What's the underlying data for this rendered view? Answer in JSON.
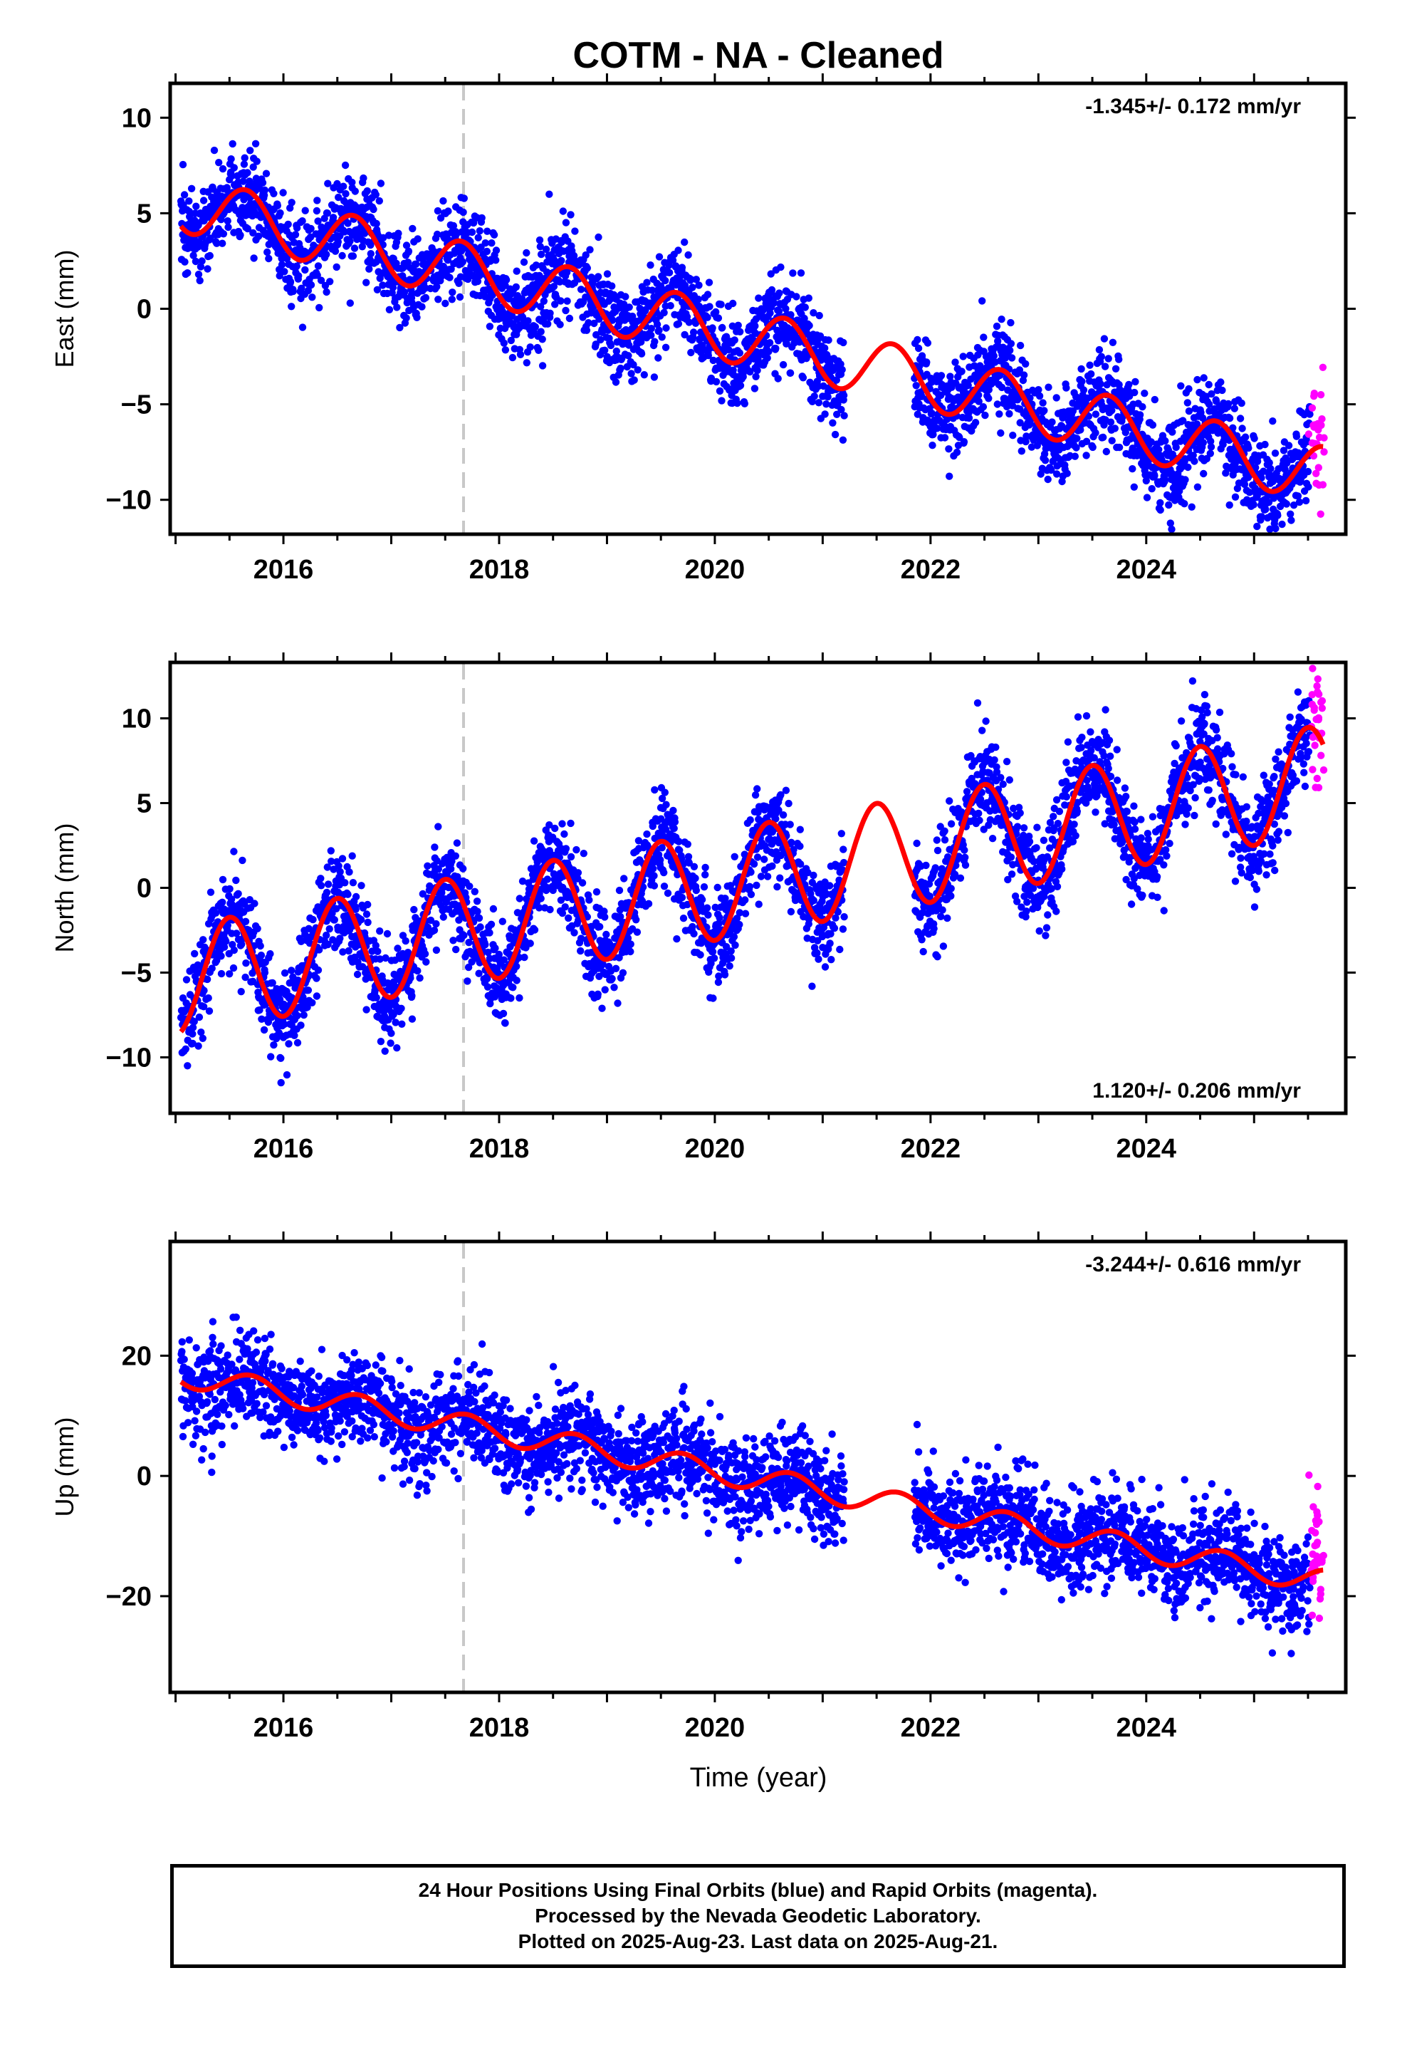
{
  "title": "COTM  - NA - Cleaned",
  "xlabel": "Time (year)",
  "footer": {
    "line1": "24 Hour Positions Using Final Orbits (blue) and Rapid Orbits (magenta).",
    "line2": "Processed by the Nevada Geodetic Laboratory.",
    "line3": "Plotted on 2025-Aug-23. Last data on 2025-Aug-21."
  },
  "colors": {
    "final_orbits": "#0000ff",
    "rapid_orbits": "#ff00ff",
    "model_fit": "#ff0000",
    "event_line": "#c8c8c8"
  },
  "chart_data": [
    {
      "type": "scatter",
      "component": "east",
      "ylabel": "East (mm)",
      "rate_label": "-1.345+/- 0.172 mm/yr",
      "xlim": [
        2014.95,
        2025.85
      ],
      "ylim": [
        -11.8,
        11.8
      ],
      "xticks": [
        2016,
        2018,
        2020,
        2022,
        2024
      ],
      "yticks": [
        -10,
        -5,
        0,
        5,
        10
      ],
      "event_line_x": 2017.67,
      "data_gap": [
        2021.2,
        2021.85
      ],
      "rapid_start": 2025.52,
      "data_end": 2025.64,
      "model": {
        "intercept_at_2015": 5.6,
        "rate_mm_per_yr": -1.345,
        "annual_amplitude": 1.5,
        "annual_phase_peak": 0.65,
        "noise_sd": 1.2
      },
      "series": [
        {
          "name": "Final Orbits (blue)",
          "x_range": [
            2015.05,
            2025.52
          ]
        },
        {
          "name": "Rapid Orbits (magenta)",
          "x_range": [
            2025.52,
            2025.64
          ]
        },
        {
          "name": "Model fit",
          "x_range": [
            2015.05,
            2025.64
          ]
        }
      ]
    },
    {
      "type": "scatter",
      "component": "north",
      "ylabel": "North (mm)",
      "rate_label": "1.120+/- 0.206 mm/yr",
      "xlim": [
        2014.95,
        2025.85
      ],
      "ylim": [
        -13.3,
        13.3
      ],
      "xticks": [
        2016,
        2018,
        2020,
        2022,
        2024
      ],
      "yticks": [
        -10,
        -5,
        0,
        5,
        10
      ],
      "event_line_x": 2017.67,
      "data_gap": [
        2021.2,
        2021.85
      ],
      "rapid_start": 2025.52,
      "data_end": 2025.64,
      "model": {
        "intercept_at_2015": -5.5,
        "rate_mm_per_yr": 1.12,
        "annual_amplitude": 3.2,
        "annual_phase_peak": 0.5,
        "noise_sd": 1.4
      },
      "series": [
        {
          "name": "Final Orbits (blue)",
          "x_range": [
            2015.05,
            2025.52
          ]
        },
        {
          "name": "Rapid Orbits (magenta)",
          "x_range": [
            2025.52,
            2025.64
          ]
        },
        {
          "name": "Model fit",
          "x_range": [
            2015.05,
            2025.64
          ]
        }
      ]
    },
    {
      "type": "scatter",
      "component": "up",
      "ylabel": "Up (mm)",
      "rate_label": "-3.244+/- 0.616 mm/yr",
      "xlim": [
        2014.95,
        2025.85
      ],
      "ylim": [
        -36,
        39
      ],
      "xticks": [
        2016,
        2018,
        2020,
        2022,
        2024
      ],
      "yticks": [
        -20,
        0,
        20
      ],
      "event_line_x": 2017.67,
      "data_gap": [
        2021.2,
        2021.85
      ],
      "rapid_start": 2025.52,
      "data_end": 2025.64,
      "model": {
        "intercept_at_2015": 17.0,
        "rate_mm_per_yr": -3.244,
        "annual_amplitude": 2.0,
        "annual_phase_peak": 0.7,
        "noise_sd": 4.0
      },
      "series": [
        {
          "name": "Final Orbits (blue)",
          "x_range": [
            2015.05,
            2025.52
          ]
        },
        {
          "name": "Rapid Orbits (magenta)",
          "x_range": [
            2025.52,
            2025.64
          ]
        },
        {
          "name": "Model fit",
          "x_range": [
            2015.05,
            2025.64
          ]
        }
      ]
    }
  ]
}
